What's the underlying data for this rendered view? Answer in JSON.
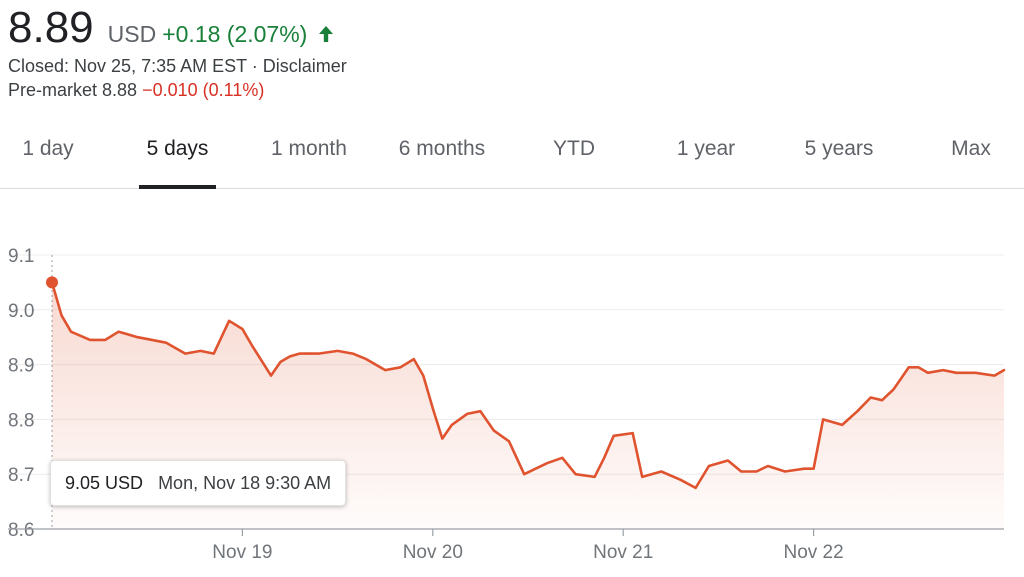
{
  "quote": {
    "price": "8.89",
    "currency": "USD",
    "change": "+0.18 (2.07%)",
    "closed_text": "Closed: Nov 25, 7:35 AM EST",
    "separator": " · ",
    "disclaimer_label": "Disclaimer",
    "premarket_label": "Pre-market 8.88",
    "premarket_change": "−0.010 (0.11%)",
    "up_color": "#188038",
    "down_color": "#d93025"
  },
  "range_tabs": {
    "items": [
      {
        "label": "1 day"
      },
      {
        "label": "5 days"
      },
      {
        "label": "1 month"
      },
      {
        "label": "6 months"
      },
      {
        "label": "YTD"
      },
      {
        "label": "1 year"
      },
      {
        "label": "5 years"
      },
      {
        "label": "Max"
      }
    ],
    "active": "5 days"
  },
  "tooltip": {
    "price": "9.05 USD",
    "date": "Mon, Nov 18 9:30 AM"
  },
  "chart_data": {
    "type": "area",
    "line_color": "#e0532f",
    "ylim": [
      8.6,
      9.1
    ],
    "y_ticks": [
      "8.6",
      "8.7",
      "8.8",
      "8.9",
      "9.0",
      "9.1"
    ],
    "x_tick_labels": [
      "Nov 19",
      "Nov 20",
      "Nov 21",
      "Nov 22"
    ],
    "x_tick_positions": [
      1,
      2,
      3,
      4
    ],
    "xlim": [
      0,
      5
    ],
    "grid": true,
    "series": [
      {
        "x": [
          0,
          0.05,
          0.1,
          0.2,
          0.28,
          0.35,
          0.45,
          0.6,
          0.7,
          0.78,
          0.85,
          0.93,
          1.0,
          1.05,
          1.15,
          1.2,
          1.25,
          1.3,
          1.4,
          1.5,
          1.58,
          1.65,
          1.75,
          1.83,
          1.9,
          1.95,
          2.0,
          2.05,
          2.1,
          2.18,
          2.25,
          2.32,
          2.4,
          2.48,
          2.6,
          2.68,
          2.75,
          2.85,
          2.9,
          2.95,
          3.05,
          3.1,
          3.2,
          3.3,
          3.38,
          3.45,
          3.55,
          3.62,
          3.7,
          3.76,
          3.85,
          3.95,
          4.0,
          4.05,
          4.15,
          4.23,
          4.3,
          4.36,
          4.42,
          4.5,
          4.55,
          4.6,
          4.68,
          4.75,
          4.85,
          4.95,
          5.0
        ],
        "y": [
          9.05,
          8.99,
          8.96,
          8.945,
          8.945,
          8.96,
          8.95,
          8.94,
          8.92,
          8.925,
          8.92,
          8.98,
          8.965,
          8.935,
          8.88,
          8.905,
          8.915,
          8.92,
          8.92,
          8.925,
          8.92,
          8.91,
          8.89,
          8.895,
          8.91,
          8.88,
          8.82,
          8.765,
          8.79,
          8.81,
          8.815,
          8.78,
          8.76,
          8.7,
          8.72,
          8.73,
          8.7,
          8.695,
          8.73,
          8.77,
          8.775,
          8.695,
          8.705,
          8.69,
          8.675,
          8.715,
          8.725,
          8.705,
          8.705,
          8.715,
          8.705,
          8.71,
          8.71,
          8.8,
          8.79,
          8.815,
          8.84,
          8.835,
          8.855,
          8.895,
          8.895,
          8.885,
          8.89,
          8.885,
          8.885,
          8.88,
          8.89
        ]
      }
    ]
  }
}
